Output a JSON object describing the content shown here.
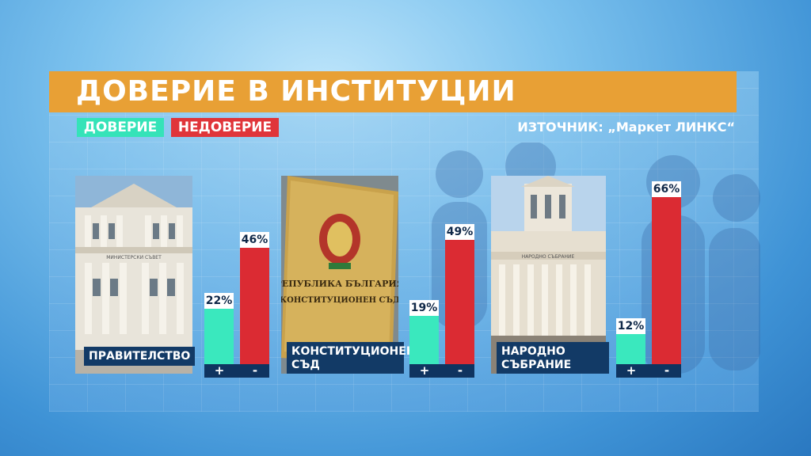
{
  "title": "ДОВЕРИЕ В ИНСТИТУЦИИ",
  "legend": {
    "trust": "ДОВЕРИЕ",
    "distrust": "НЕДОВЕРИЕ"
  },
  "source": "ИЗТОЧНИК: „Маркет ЛИНКС“",
  "colors": {
    "trust": "#3ae8be",
    "distrust": "#db2b33",
    "title_bar": "#e8a035",
    "label_bg": "#123a66"
  },
  "chart_data": {
    "type": "bar",
    "title": "ДОВЕРИЕ В ИНСТИТУЦИИ",
    "categories": [
      "ПРАВИТЕЛСТВО",
      "КОНСТИТУЦИОНЕН СЪД",
      "НАРОДНО СЪБРАНИЕ"
    ],
    "series": [
      {
        "name": "ДОВЕРИЕ",
        "values": [
          22,
          19,
          12
        ]
      },
      {
        "name": "НЕДОВЕРИЕ",
        "values": [
          46,
          49,
          66
        ]
      }
    ],
    "value_labels": {
      "trust": [
        "22%",
        "19%",
        "12%"
      ],
      "distrust": [
        "46%",
        "49%",
        "66%"
      ]
    },
    "axis_marks": {
      "plus": "+",
      "minus": "-"
    },
    "ylim": [
      0,
      100
    ],
    "grid": false,
    "legend_position": "top-left"
  },
  "institutions": [
    {
      "label_line1": "ПРАВИТЕЛСТВО",
      "label_line2": "",
      "photo_text": "МИНИСТЕРСКИ СЪВЕТ"
    },
    {
      "label_line1": "КОНСТИТУЦИОНЕН",
      "label_line2": "СЪД",
      "photo_text_1": "РЕПУБЛИКА БЪЛГАРИЯ",
      "photo_text_2": "КОНСТИТУЦИОНЕН СЪД"
    },
    {
      "label_line1": "НАРОДНО",
      "label_line2": "СЪБРАНИЕ",
      "photo_text": "НАРОДНО СЪБРАНИЕ"
    }
  ]
}
